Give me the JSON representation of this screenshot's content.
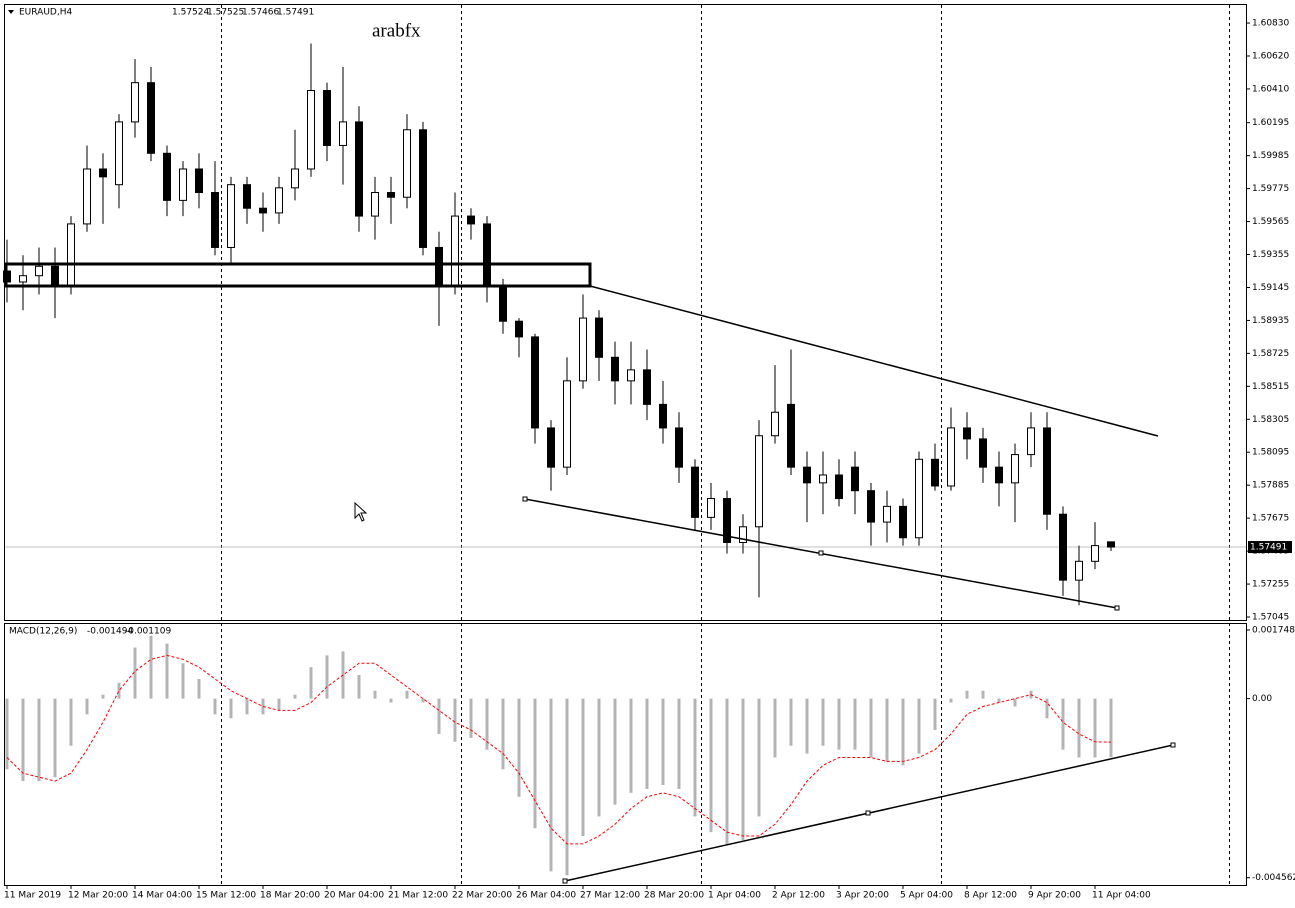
{
  "chart_data": [
    {
      "type": "candlestick",
      "title": "EURAUD,H4",
      "last_bar": [
        1.57524,
        1.57525,
        1.57466,
        1.57491
      ],
      "annotations": [
        "arabfx"
      ],
      "price_label": 1.57491,
      "categories": [
        "11 Mar 2019",
        null,
        null,
        null,
        "12 Mar 20:00",
        null,
        null,
        null,
        "14 Mar 04:00",
        null,
        null,
        null,
        "15 Mar 12:00",
        null,
        null,
        null,
        "18 Mar 20:00",
        null,
        null,
        null,
        "20 Mar 04:00",
        null,
        null,
        null,
        "21 Mar 12:00",
        null,
        null,
        null,
        "22 Mar 20:00",
        null,
        null,
        null,
        "26 Mar 04:00",
        null,
        null,
        null,
        "27 Mar 12:00",
        null,
        null,
        null,
        "28 Mar 20:00",
        null,
        null,
        null,
        "1 Apr 04:00",
        null,
        null,
        null,
        "2 Apr 12:00",
        null,
        null,
        null,
        "3 Apr 20:00",
        null,
        null,
        null,
        "5 Apr 04:00",
        null,
        null,
        null,
        "8 Apr 12:00",
        null,
        null,
        null,
        "9 Apr 20:00",
        null,
        null,
        null,
        "11 Apr 04:00",
        null
      ],
      "open": [
        1.5925,
        1.5918,
        1.5922,
        1.5928,
        1.5915,
        1.5955,
        1.599,
        1.598,
        1.602,
        1.6045,
        1.6,
        1.597,
        1.599,
        1.5975,
        1.594,
        1.598,
        1.5965,
        1.5962,
        1.5978,
        1.599,
        1.604,
        1.6005,
        1.602,
        1.596,
        1.5975,
        1.5972,
        1.6015,
        1.594,
        1.5915,
        1.596,
        1.5955,
        1.5915,
        1.5893,
        1.5883,
        1.5825,
        1.58,
        1.5855,
        1.5895,
        1.587,
        1.5855,
        1.5862,
        1.584,
        1.5825,
        1.58,
        1.5768,
        1.578,
        1.5752,
        1.5762,
        1.582,
        1.584,
        1.58,
        1.579,
        1.5795,
        1.58,
        1.5785,
        1.5765,
        1.5775,
        1.5755,
        1.5805,
        1.5788,
        1.5825,
        1.5818,
        1.58,
        1.579,
        1.5808,
        1.5825,
        1.577,
        1.5728,
        1.574,
        1.57524
      ],
      "high": [
        1.5945,
        1.5935,
        1.594,
        1.594,
        1.596,
        1.6005,
        1.6,
        1.6025,
        1.606,
        1.6055,
        1.6005,
        1.5995,
        1.6,
        1.5995,
        1.5985,
        1.5985,
        1.5975,
        1.5985,
        1.6015,
        1.607,
        1.6045,
        1.6055,
        1.603,
        1.5985,
        1.5985,
        1.6025,
        1.602,
        1.595,
        1.5975,
        1.5965,
        1.596,
        1.592,
        1.5895,
        1.5885,
        1.583,
        1.587,
        1.591,
        1.59,
        1.588,
        1.588,
        1.5875,
        1.5855,
        1.5835,
        1.5805,
        1.579,
        1.5785,
        1.577,
        1.583,
        1.5865,
        1.5875,
        1.581,
        1.581,
        1.5805,
        1.581,
        1.579,
        1.5785,
        1.578,
        1.581,
        1.5815,
        1.5838,
        1.5835,
        1.5825,
        1.581,
        1.5815,
        1.5835,
        1.5835,
        1.5775,
        1.575,
        1.5765,
        1.57525
      ],
      "low": [
        1.5905,
        1.59,
        1.591,
        1.5895,
        1.591,
        1.595,
        1.5955,
        1.5965,
        1.601,
        1.5995,
        1.596,
        1.596,
        1.5965,
        1.5935,
        1.593,
        1.5955,
        1.595,
        1.5955,
        1.597,
        1.5985,
        1.5995,
        1.598,
        1.595,
        1.5945,
        1.5955,
        1.5965,
        1.5935,
        1.589,
        1.591,
        1.5945,
        1.5905,
        1.5885,
        1.587,
        1.5815,
        1.5785,
        1.5795,
        1.585,
        1.5855,
        1.584,
        1.584,
        1.583,
        1.5815,
        1.579,
        1.576,
        1.576,
        1.5745,
        1.5745,
        1.5717,
        1.5815,
        1.5795,
        1.5765,
        1.577,
        1.5775,
        1.577,
        1.575,
        1.5752,
        1.575,
        1.575,
        1.5785,
        1.5785,
        1.5805,
        1.579,
        1.5775,
        1.5765,
        1.58,
        1.576,
        1.5718,
        1.5712,
        1.5735,
        1.57466
      ],
      "close": [
        1.5918,
        1.5922,
        1.5928,
        1.5915,
        1.5955,
        1.599,
        1.5985,
        1.602,
        1.6045,
        1.6,
        1.597,
        1.599,
        1.5975,
        1.594,
        1.598,
        1.5965,
        1.5962,
        1.5978,
        1.599,
        1.604,
        1.6005,
        1.602,
        1.596,
        1.5975,
        1.5972,
        1.6015,
        1.594,
        1.5915,
        1.596,
        1.5955,
        1.5915,
        1.5893,
        1.5883,
        1.5825,
        1.58,
        1.5855,
        1.5895,
        1.587,
        1.5855,
        1.5862,
        1.584,
        1.5825,
        1.58,
        1.5768,
        1.578,
        1.5752,
        1.5762,
        1.582,
        1.5835,
        1.58,
        1.579,
        1.5795,
        1.578,
        1.5785,
        1.5765,
        1.5775,
        1.5755,
        1.5805,
        1.5788,
        1.5825,
        1.5818,
        1.58,
        1.579,
        1.5808,
        1.5825,
        1.577,
        1.5728,
        1.574,
        1.575,
        1.57491
      ],
      "up_color": "#ffffff",
      "down_color": "#000000",
      "edge_color": "#000000",
      "ylim": [
        1.57026,
        1.60945
      ],
      "yticks": [
        {
          "value": 1.6083,
          "label": "1.60830"
        },
        {
          "value": 1.6062,
          "label": "1.60620"
        },
        {
          "value": 1.6041,
          "label": "1.60410"
        },
        1.60195,
        1.59985,
        1.59775,
        1.59565,
        1.59355,
        1.59145,
        1.58935,
        1.58725,
        1.58515,
        1.58305,
        1.58095,
        1.57885,
        1.57675,
        1.57465,
        1.57255,
        1.57045
      ]
    },
    {
      "type": "macd",
      "title": "MACD(12,26,9)",
      "last_values": [
        -0.001494,
        -0.001109
      ],
      "series": [
        {
          "name": "MACD",
          "color": "#b4b4b4",
          "values": [
            -0.0018,
            -0.0021,
            -0.0021,
            -0.002,
            -0.0012,
            -0.0004,
            0.0001,
            0.0004,
            0.0013,
            0.0016,
            0.0014,
            0.0009,
            0.0005,
            -0.0004,
            -0.0005,
            -0.0004,
            -0.0004,
            -0.0003,
            0.0001,
            0.0008,
            0.0011,
            0.0012,
            0.0006,
            0.0002,
            -0.0001,
            0.0002,
            -0.0001,
            -0.0009,
            -0.0011,
            -0.001,
            -0.0013,
            -0.0018,
            -0.0025,
            -0.0033,
            -0.0044,
            -0.0045,
            -0.0035,
            -0.003,
            -0.0027,
            -0.0024,
            -0.0023,
            -0.0022,
            -0.0023,
            -0.003,
            -0.0034,
            -0.0037,
            -0.0036,
            -0.003,
            -0.0015,
            -0.0012,
            -0.0014,
            -0.0012,
            -0.0013,
            -0.0013,
            -0.0015,
            -0.0016,
            -0.0017,
            -0.0014,
            -0.0008,
            -0.0001,
            0.0002,
            0.0002,
            -0.0001,
            -0.0002,
            0.0002,
            -0.0005,
            -0.0013,
            -0.0015,
            -0.0015,
            -0.001494
          ]
        },
        {
          "name": "Signal",
          "color": "#ff0000",
          "values": [
            -0.0015,
            -0.0019,
            -0.002,
            -0.0021,
            -0.0019,
            -0.0013,
            -0.0006,
            0.0002,
            0.0007,
            0.001,
            0.0011,
            0.001,
            0.0008,
            0.0005,
            0.0002,
            0.0,
            -0.0002,
            -0.0003,
            -0.0003,
            -0.0001,
            0.0003,
            0.0006,
            0.0009,
            0.0009,
            0.0006,
            0.0003,
            0.0,
            -0.0003,
            -0.0006,
            -0.0008,
            -0.0011,
            -0.0014,
            -0.0019,
            -0.0026,
            -0.0033,
            -0.0037,
            -0.0037,
            -0.0035,
            -0.0032,
            -0.0028,
            -0.0025,
            -0.0024,
            -0.0025,
            -0.0028,
            -0.0031,
            -0.0034,
            -0.0035,
            -0.0035,
            -0.0032,
            -0.0027,
            -0.0021,
            -0.0017,
            -0.0015,
            -0.0015,
            -0.0015,
            -0.0016,
            -0.0016,
            -0.0015,
            -0.0013,
            -0.0009,
            -0.0004,
            -0.0002,
            -0.0001,
            0.0,
            0.0001,
            -0.0001,
            -0.0006,
            -0.0009,
            -0.0011,
            -0.001109
          ]
        }
      ],
      "ylim": [
        -0.004747,
        0.0019
      ],
      "yticks": [
        0.001748,
        {
          "value": 0,
          "label": "0.00"
        },
        -0.004562
      ]
    }
  ]
}
